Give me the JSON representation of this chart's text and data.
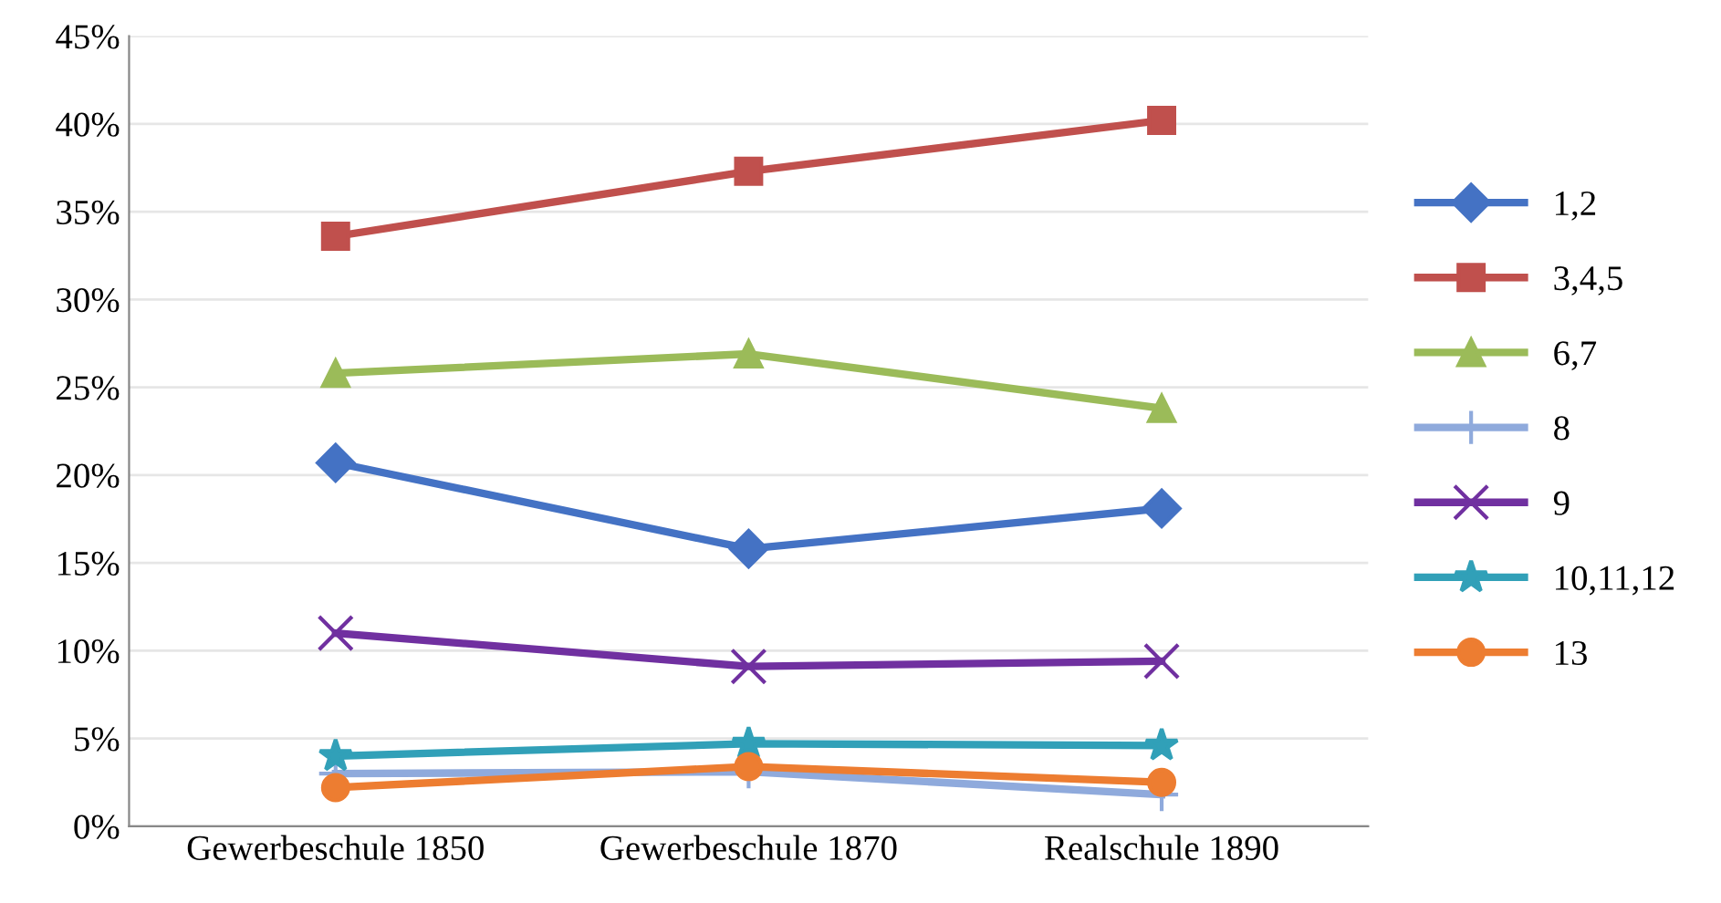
{
  "chart_data": {
    "type": "line",
    "categories": [
      "Gewerbeschule 1850",
      "Gewerbeschule 1870",
      "Realschule 1890"
    ],
    "series": [
      {
        "name": "1,2",
        "color": "#4472c4",
        "marker": "diamond",
        "values": [
          20.7,
          15.8,
          18.1
        ]
      },
      {
        "name": "3,4,5",
        "color": "#c0504d",
        "marker": "square",
        "values": [
          33.6,
          37.3,
          40.2
        ]
      },
      {
        "name": "6,7",
        "color": "#9bbb59",
        "marker": "triangle",
        "values": [
          25.8,
          26.9,
          23.8
        ]
      },
      {
        "name": "8",
        "color": "#8faadc",
        "marker": "cross",
        "values": [
          3.0,
          3.1,
          1.8
        ]
      },
      {
        "name": "9",
        "color": "#7030a0",
        "marker": "x",
        "values": [
          11.0,
          9.1,
          9.4
        ]
      },
      {
        "name": "10,11,12",
        "color": "#31a0b8",
        "marker": "star",
        "values": [
          4.0,
          4.7,
          4.6
        ]
      },
      {
        "name": "13",
        "color": "#ed7d31",
        "marker": "circle",
        "values": [
          2.2,
          3.4,
          2.5
        ]
      }
    ],
    "ylim": [
      0,
      45
    ],
    "yticks": [
      {
        "value": 0,
        "label": "0%"
      },
      {
        "value": 5,
        "label": "5%"
      },
      {
        "value": 10,
        "label": "10%"
      },
      {
        "value": 15,
        "label": "15%"
      },
      {
        "value": 20,
        "label": "20%"
      },
      {
        "value": 25,
        "label": "25%"
      },
      {
        "value": 30,
        "label": "30%"
      },
      {
        "value": 35,
        "label": "35%"
      },
      {
        "value": 40,
        "label": "40%"
      },
      {
        "value": 45,
        "label": "45%"
      }
    ],
    "grid": "y",
    "legend": "right",
    "line_style": "solid"
  }
}
